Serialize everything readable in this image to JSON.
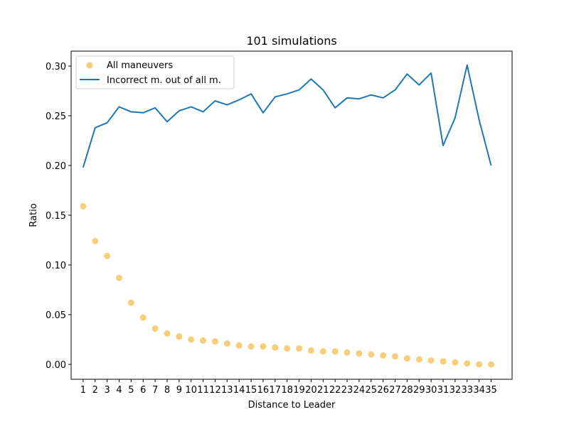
{
  "chart_data": {
    "type": "line",
    "title": "101 simulations",
    "xlabel": "Distance to Leader",
    "ylabel": "Ratio",
    "x": [
      1,
      2,
      3,
      4,
      5,
      6,
      7,
      8,
      9,
      10,
      11,
      12,
      13,
      14,
      15,
      16,
      17,
      18,
      19,
      20,
      21,
      22,
      23,
      24,
      25,
      26,
      27,
      28,
      29,
      30,
      31,
      32,
      33,
      34,
      35
    ],
    "xlim": [
      0,
      36.75
    ],
    "ylim": [
      -0.015,
      0.315
    ],
    "yticks": [
      "0.00",
      "0.05",
      "0.10",
      "0.15",
      "0.20",
      "0.25",
      "0.30"
    ],
    "ytick_values": [
      0,
      0.05,
      0.1,
      0.15,
      0.2,
      0.25,
      0.3
    ],
    "grid": false,
    "legend_position": "upper-left",
    "series": [
      {
        "name": "All maneuvers",
        "kind": "scatter",
        "color": "#f5b942",
        "values": [
          0.159,
          0.124,
          0.109,
          0.087,
          0.062,
          0.047,
          0.036,
          0.031,
          0.028,
          0.025,
          0.024,
          0.023,
          0.021,
          0.019,
          0.018,
          0.018,
          0.017,
          0.016,
          0.016,
          0.014,
          0.013,
          0.013,
          0.012,
          0.011,
          0.01,
          0.009,
          0.008,
          0.006,
          0.005,
          0.004,
          0.003,
          0.002,
          0.001,
          0.0,
          0.0
        ]
      },
      {
        "name": "Incorrect m. out of all m.",
        "kind": "line",
        "color": "#1f77b4",
        "values": [
          0.198,
          0.238,
          0.243,
          0.259,
          0.254,
          0.253,
          0.258,
          0.244,
          0.255,
          0.259,
          0.254,
          0.265,
          0.261,
          0.266,
          0.272,
          0.253,
          0.269,
          0.272,
          0.276,
          0.287,
          0.276,
          0.258,
          0.268,
          0.267,
          0.271,
          0.268,
          0.276,
          0.292,
          0.281,
          0.293,
          0.22,
          0.248,
          0.301,
          0.246,
          0.2
        ]
      }
    ]
  }
}
